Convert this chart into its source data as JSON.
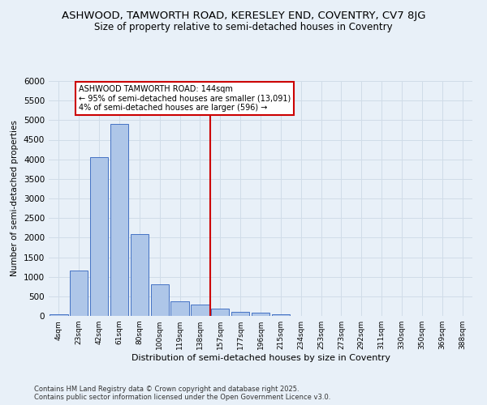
{
  "title": "ASHWOOD, TAMWORTH ROAD, KERESLEY END, COVENTRY, CV7 8JG",
  "subtitle": "Size of property relative to semi-detached houses in Coventry",
  "xlabel": "Distribution of semi-detached houses by size in Coventry",
  "ylabel": "Number of semi-detached properties",
  "footnote1": "Contains HM Land Registry data © Crown copyright and database right 2025.",
  "footnote2": "Contains public sector information licensed under the Open Government Licence v3.0.",
  "categories": [
    "4sqm",
    "23sqm",
    "42sqm",
    "61sqm",
    "80sqm",
    "100sqm",
    "119sqm",
    "138sqm",
    "157sqm",
    "177sqm",
    "196sqm",
    "215sqm",
    "234sqm",
    "253sqm",
    "273sqm",
    "292sqm",
    "311sqm",
    "330sqm",
    "350sqm",
    "369sqm",
    "388sqm"
  ],
  "values": [
    50,
    1150,
    4050,
    4900,
    2100,
    800,
    380,
    280,
    180,
    100,
    90,
    50,
    10,
    10,
    0,
    0,
    0,
    0,
    0,
    0,
    0
  ],
  "bar_color": "#aec6e8",
  "bar_edge_color": "#4472c4",
  "vline_color": "#cc0000",
  "annotation_title": "ASHWOOD TAMWORTH ROAD: 144sqm",
  "annotation_line1": "← 95% of semi-detached houses are smaller (13,091)",
  "annotation_line2": "4% of semi-detached houses are larger (596) →",
  "annotation_box_color": "#ffffff",
  "annotation_box_edge": "#cc0000",
  "ylim": [
    0,
    6000
  ],
  "yticks": [
    0,
    500,
    1000,
    1500,
    2000,
    2500,
    3000,
    3500,
    4000,
    4500,
    5000,
    5500,
    6000
  ],
  "grid_color": "#d0dce8",
  "background_color": "#e8f0f8",
  "title_fontsize": 9.5,
  "subtitle_fontsize": 8.5,
  "footnote_fontsize": 6.0
}
